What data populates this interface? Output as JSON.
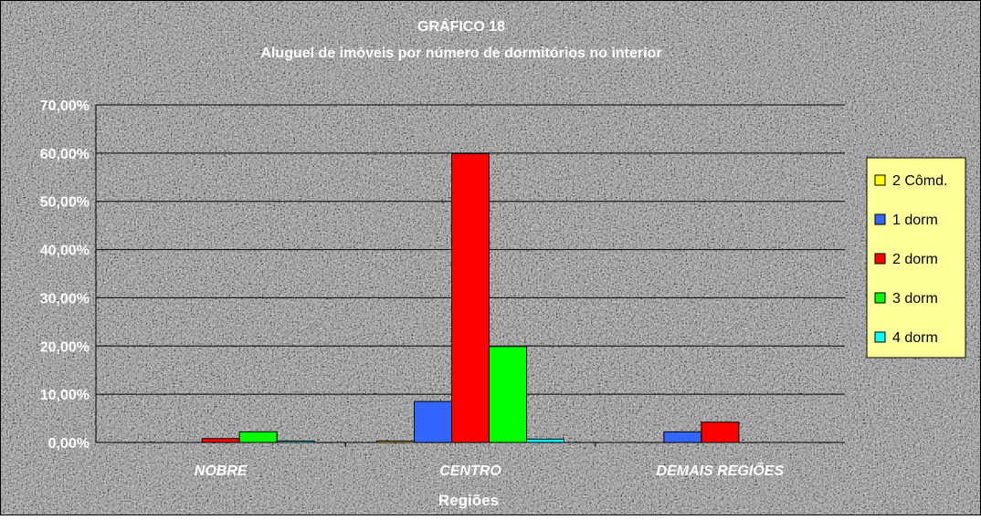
{
  "chart_data": {
    "type": "bar",
    "title": "GRÁFICO 18",
    "subtitle": "Aluguel de imóveis por número de dormitórios no interior",
    "xlabel": "Regiões",
    "ylabel": "",
    "categories": [
      "NOBRE",
      "CENTRO",
      "DEMAIS REGIÕES"
    ],
    "ylim": [
      0,
      0.7
    ],
    "yticks": [
      "0,00%",
      "10,00%",
      "20,00%",
      "30,00%",
      "40,00%",
      "50,00%",
      "60,00%",
      "70,00%"
    ],
    "grid": true,
    "legend_position": "right",
    "series": [
      {
        "name": "2 Cômd.",
        "color": "#ffff00",
        "values": [
          0.0,
          0.003,
          0.0
        ]
      },
      {
        "name": "1 dorm",
        "color": "#3366ff",
        "values": [
          0.0,
          0.085,
          0.022
        ]
      },
      {
        "name": "2 dorm",
        "color": "#ff0000",
        "values": [
          0.008,
          0.599,
          0.042
        ]
      },
      {
        "name": "3 dorm",
        "color": "#00ff00",
        "values": [
          0.022,
          0.199,
          0.0
        ]
      },
      {
        "name": "4 dorm",
        "color": "#00ffff",
        "values": [
          0.003,
          0.007,
          0.0
        ]
      }
    ]
  }
}
